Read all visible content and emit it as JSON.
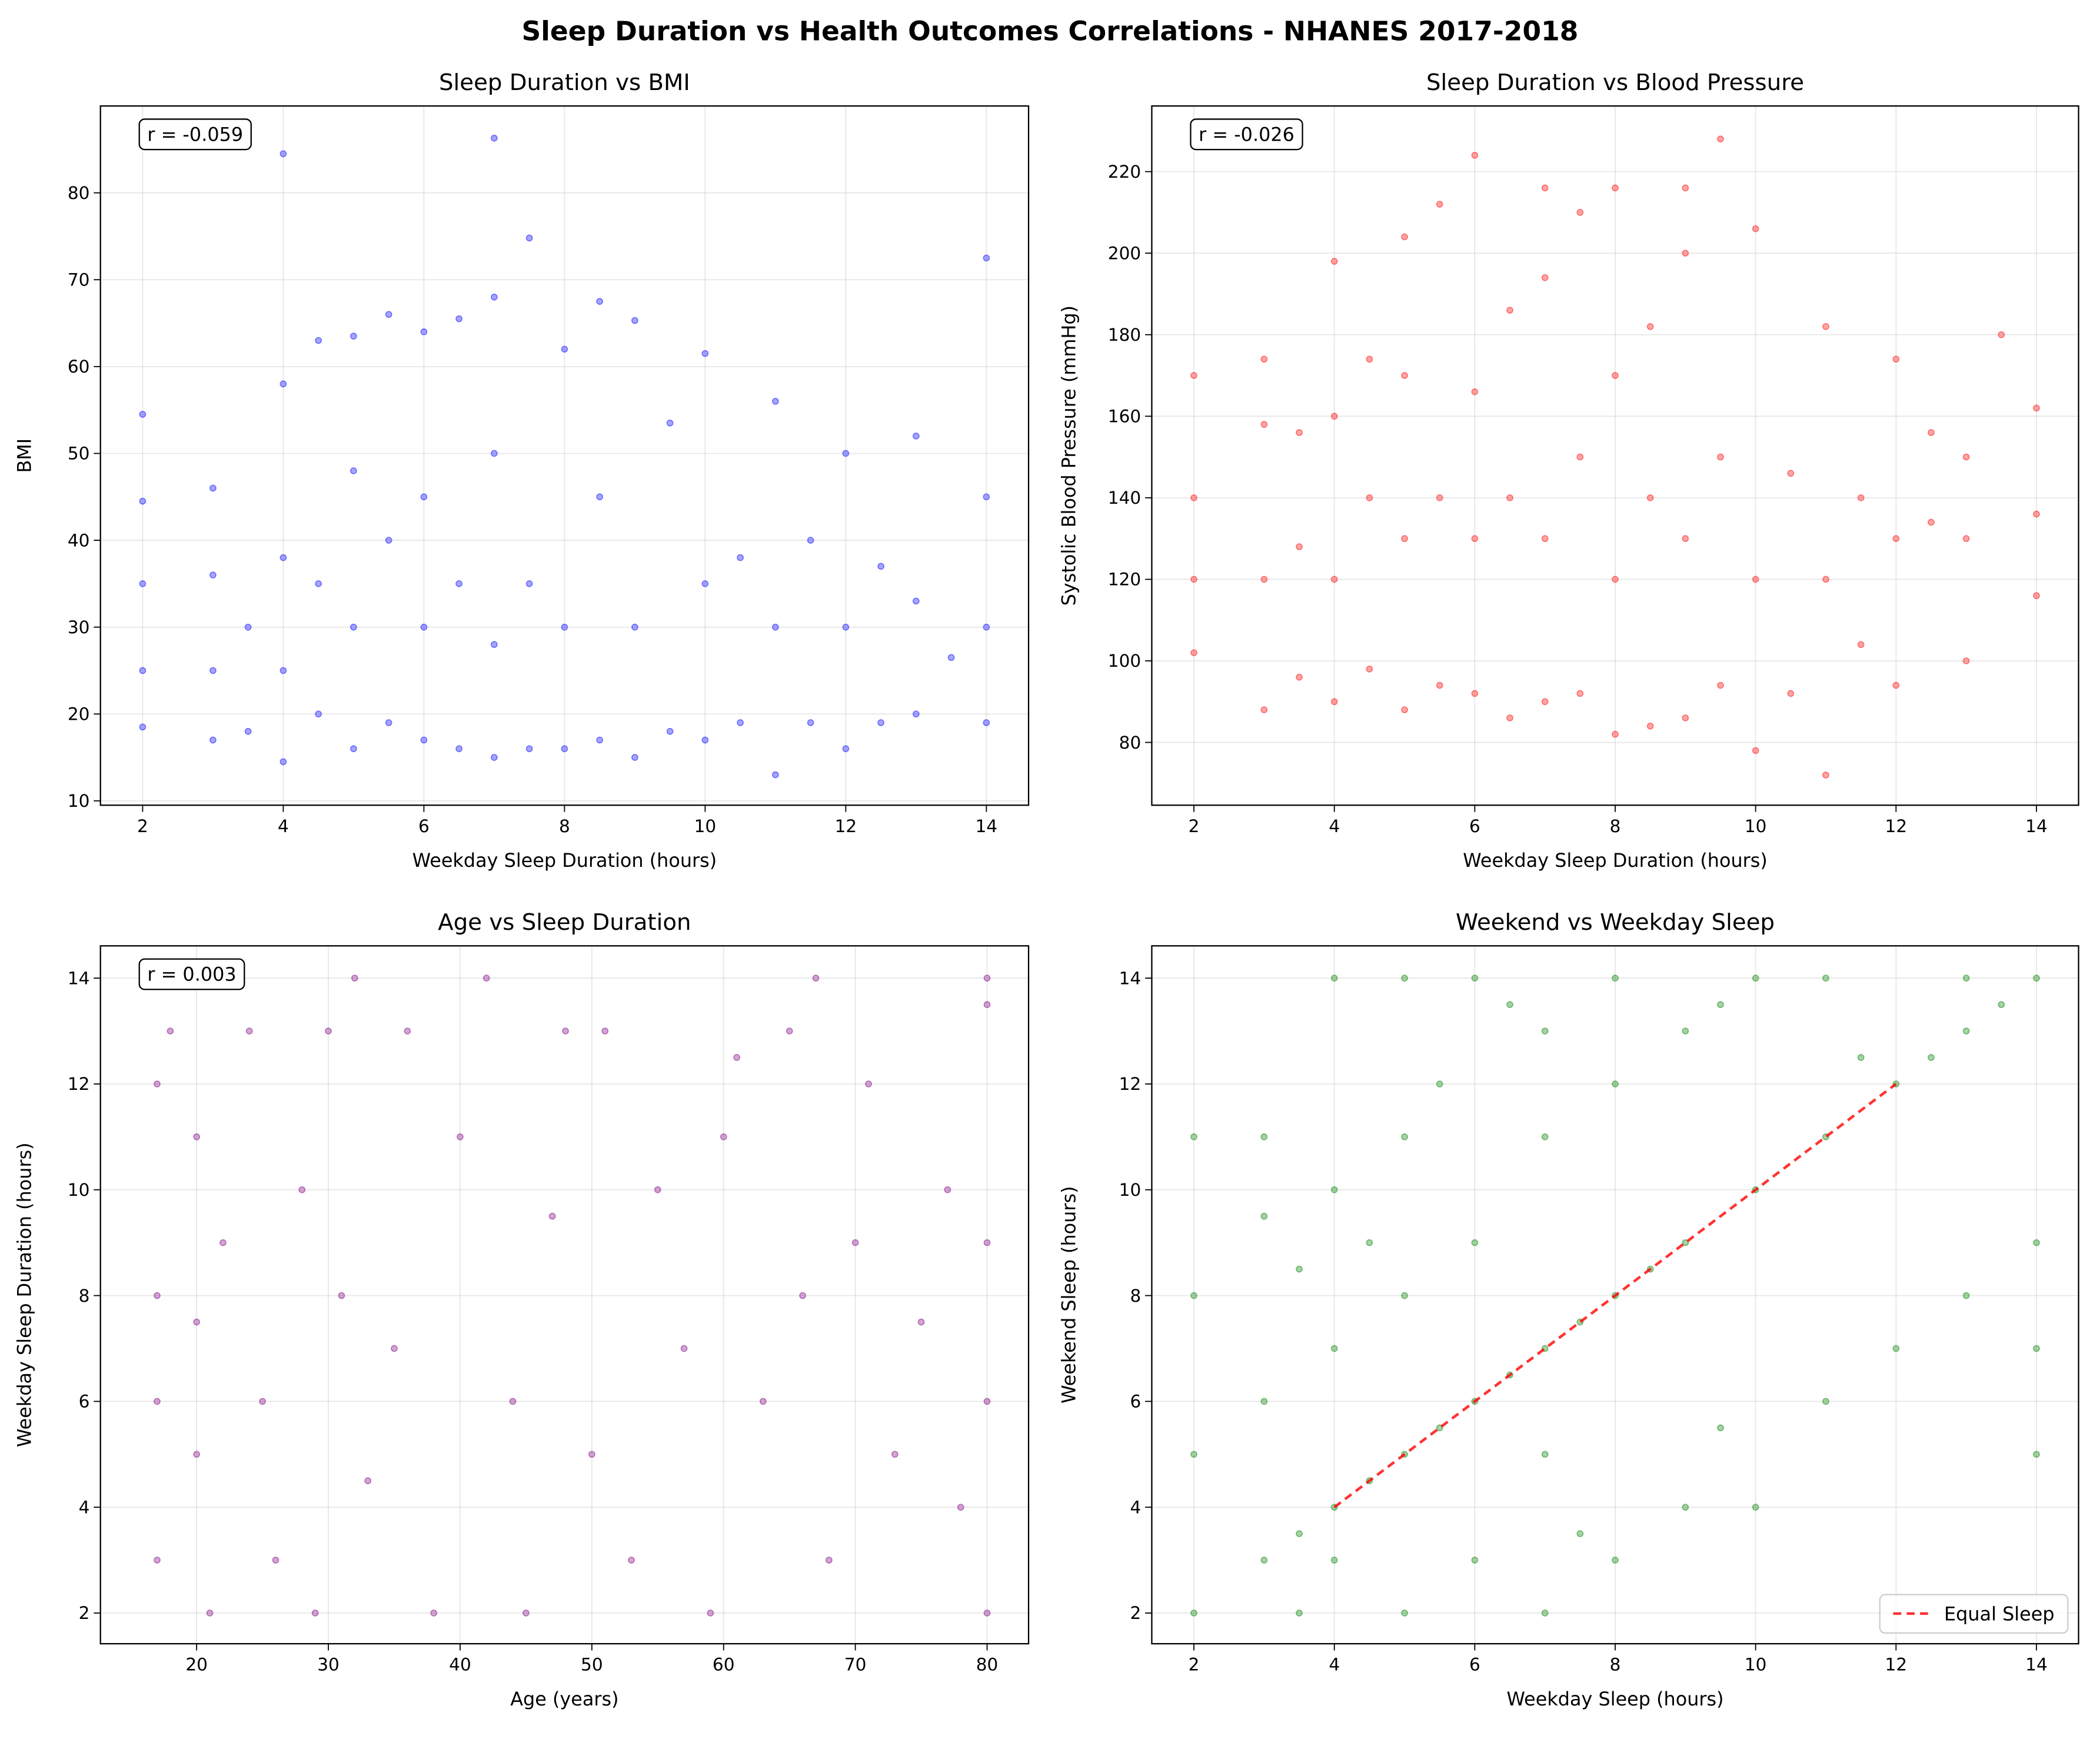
{
  "title": "Sleep Duration vs Health Outcomes Correlations - NHANES 2017-2018",
  "chart_data": [
    {
      "type": "scatter",
      "title": "Sleep Duration vs BMI",
      "xlabel": "Weekday Sleep Duration (hours)",
      "ylabel": "BMI",
      "annotation": "r = -0.059",
      "xlim": [
        1.4,
        14.6
      ],
      "ylim": [
        9.5,
        90
      ],
      "xticks": [
        2,
        4,
        6,
        8,
        10,
        12,
        14
      ],
      "yticks": [
        10,
        20,
        30,
        40,
        50,
        60,
        70,
        80
      ],
      "grid": true,
      "alpha": 0.35,
      "series": [
        {
          "color": "#0000ff",
          "x": [
            2,
            2,
            2,
            2,
            2,
            3,
            3,
            3,
            3,
            3.5,
            3.5,
            4,
            4,
            4,
            4,
            4,
            4.5,
            4.5,
            4.5,
            5,
            5,
            5,
            5,
            5.5,
            5.5,
            5.5,
            6,
            6,
            6,
            6,
            6.5,
            6.5,
            6.5,
            7,
            7,
            7,
            7,
            7,
            7.5,
            7.5,
            7.5,
            8,
            8,
            8,
            8.5,
            8.5,
            8.5,
            9,
            9,
            9,
            9.5,
            9.5,
            10,
            10,
            10,
            10.5,
            10.5,
            11,
            11,
            11,
            11.5,
            11.5,
            12,
            12,
            12,
            12.5,
            12.5,
            13,
            13,
            13,
            13.5,
            14,
            14,
            14,
            14
          ],
          "y": [
            18.5,
            25,
            35,
            44.5,
            54.5,
            17,
            25,
            36,
            46,
            18,
            30,
            14.5,
            25,
            38,
            58,
            84.5,
            20,
            35,
            63,
            16,
            30,
            48,
            63.5,
            19,
            40,
            66,
            17,
            30,
            45,
            64,
            16,
            35,
            65.5,
            15,
            28,
            50,
            68,
            86.3,
            16,
            35,
            74.8,
            16,
            30,
            62,
            17,
            45,
            67.5,
            15,
            30,
            65.3,
            18,
            53.5,
            17,
            35,
            61.5,
            19,
            38,
            13,
            30,
            56,
            19,
            40,
            16,
            30,
            50,
            19,
            37,
            20,
            33,
            52,
            26.5,
            19,
            30,
            45,
            72.5
          ]
        }
      ]
    },
    {
      "type": "scatter",
      "title": "Sleep Duration vs Blood Pressure",
      "xlabel": "Weekday Sleep Duration (hours)",
      "ylabel": "Systolic Blood Pressure (mmHg)",
      "annotation": "r = -0.026",
      "xlim": [
        1.4,
        14.6
      ],
      "ylim": [
        64.6,
        236.1
      ],
      "xticks": [
        2,
        4,
        6,
        8,
        10,
        12,
        14
      ],
      "yticks": [
        80,
        100,
        120,
        140,
        160,
        180,
        200,
        220
      ],
      "grid": true,
      "alpha": 0.35,
      "series": [
        {
          "color": "#ff0000",
          "x": [
            2,
            2,
            2,
            2,
            3,
            3,
            3,
            3,
            3.5,
            3.5,
            3.5,
            4,
            4,
            4,
            4,
            4.5,
            4.5,
            4.5,
            5,
            5,
            5,
            5,
            5.5,
            5.5,
            5.5,
            6,
            6,
            6,
            6,
            6.5,
            6.5,
            6.5,
            7,
            7,
            7,
            7,
            7.5,
            7.5,
            7.5,
            8,
            8,
            8,
            8,
            8.5,
            8.5,
            8.5,
            9,
            9,
            9,
            9,
            9.5,
            9.5,
            9.5,
            10,
            10,
            10,
            10.5,
            10.5,
            11,
            11,
            11,
            11.5,
            11.5,
            12,
            12,
            12,
            12.5,
            12.5,
            13,
            13,
            13,
            13.5,
            14,
            14,
            14
          ],
          "y": [
            102,
            120,
            140,
            170,
            88,
            120,
            158,
            174,
            96,
            128,
            156,
            90,
            120,
            160,
            198,
            98,
            140,
            174,
            88,
            130,
            170,
            204,
            94,
            140,
            212,
            92,
            130,
            166,
            224,
            86,
            140,
            186,
            90,
            130,
            194,
            216,
            92,
            150,
            210,
            82,
            120,
            170,
            216,
            84,
            140,
            182,
            86,
            130,
            200,
            216,
            94,
            150,
            228,
            78,
            120,
            206,
            92,
            146,
            72,
            120,
            182,
            104,
            140,
            94,
            130,
            174,
            134,
            156,
            100,
            130,
            150,
            180,
            116,
            136,
            162
          ]
        }
      ]
    },
    {
      "type": "scatter",
      "title": "Age vs Sleep Duration",
      "xlabel": "Age (years)",
      "ylabel": "Weekday Sleep Duration (hours)",
      "annotation": "r = 0.003",
      "xlim": [
        12.7,
        83.15
      ],
      "ylim": [
        1.42,
        14.61
      ],
      "xticks": [
        20,
        30,
        40,
        50,
        60,
        70,
        80
      ],
      "yticks": [
        2,
        4,
        6,
        8,
        10,
        12,
        14
      ],
      "grid": true,
      "alpha": 0.35,
      "series": [
        {
          "color": "#800080",
          "x": [
            17,
            17,
            17,
            17,
            18,
            20,
            20,
            20,
            21,
            22,
            24,
            25,
            26,
            28,
            29,
            30,
            31,
            32,
            33,
            35,
            36,
            38,
            40,
            42,
            44,
            45,
            47,
            48,
            50,
            51,
            53,
            55,
            57,
            59,
            60,
            61,
            63,
            65,
            66,
            67,
            68,
            70,
            71,
            73,
            75,
            77,
            78,
            80,
            80,
            80,
            80,
            80
          ],
          "y": [
            3,
            6,
            8,
            12,
            13,
            5,
            7.5,
            11,
            2,
            9,
            13,
            6,
            3,
            10,
            2,
            13,
            8,
            14,
            4.5,
            7,
            13,
            2,
            11,
            14,
            6,
            2,
            9.5,
            13,
            5,
            13,
            3,
            10,
            7,
            2,
            11,
            12.5,
            6,
            13,
            8,
            14,
            3,
            9,
            12,
            5,
            7.5,
            10,
            4,
            2,
            6,
            9,
            13.5,
            14
          ]
        }
      ]
    },
    {
      "type": "scatter",
      "title": "Weekend vs Weekday Sleep",
      "xlabel": "Weekday Sleep (hours)",
      "ylabel": "Weekend Sleep (hours)",
      "xlim": [
        1.4,
        14.6
      ],
      "ylim": [
        1.42,
        14.61
      ],
      "xticks": [
        2,
        4,
        6,
        8,
        10,
        12,
        14
      ],
      "yticks": [
        2,
        4,
        6,
        8,
        10,
        12,
        14
      ],
      "grid": true,
      "alpha": 0.35,
      "legend": "lower right",
      "series": [
        {
          "color": "#008000",
          "x": [
            2,
            2,
            2,
            2,
            3,
            3,
            3,
            3,
            3.5,
            3.5,
            3.5,
            4,
            4,
            4,
            4,
            4,
            4.5,
            4.5,
            5,
            5,
            5,
            5,
            5,
            5.5,
            5.5,
            6,
            6,
            6,
            6,
            6.5,
            6.5,
            7,
            7,
            7,
            7,
            7,
            7.5,
            7.5,
            8,
            8,
            8,
            8,
            8.5,
            9,
            9,
            9,
            9.5,
            9.5,
            10,
            10,
            10,
            11,
            11,
            11,
            11.5,
            12,
            12,
            12.5,
            13,
            13,
            13,
            13.5,
            14,
            14,
            14,
            14
          ],
          "y": [
            2,
            5,
            8,
            11,
            3,
            6,
            9.5,
            11,
            2,
            3.5,
            8.5,
            3,
            4,
            7,
            10,
            14,
            4.5,
            9,
            2,
            5,
            8,
            11,
            14,
            5.5,
            12,
            3,
            6,
            9,
            14,
            6.5,
            13.5,
            2,
            5,
            7,
            11,
            13,
            7.5,
            3.5,
            3,
            8,
            12,
            14,
            8.5,
            4,
            9,
            13,
            5.5,
            13.5,
            4,
            10,
            14,
            6,
            11,
            14,
            12.5,
            7,
            12,
            12.5,
            8,
            13,
            14,
            13.5,
            5,
            7,
            9,
            14
          ]
        },
        {
          "type": "line",
          "name": "Equal Sleep",
          "color": "#ff0000",
          "dashed": true,
          "x": [
            4,
            12
          ],
          "y": [
            4,
            12
          ]
        }
      ]
    }
  ]
}
